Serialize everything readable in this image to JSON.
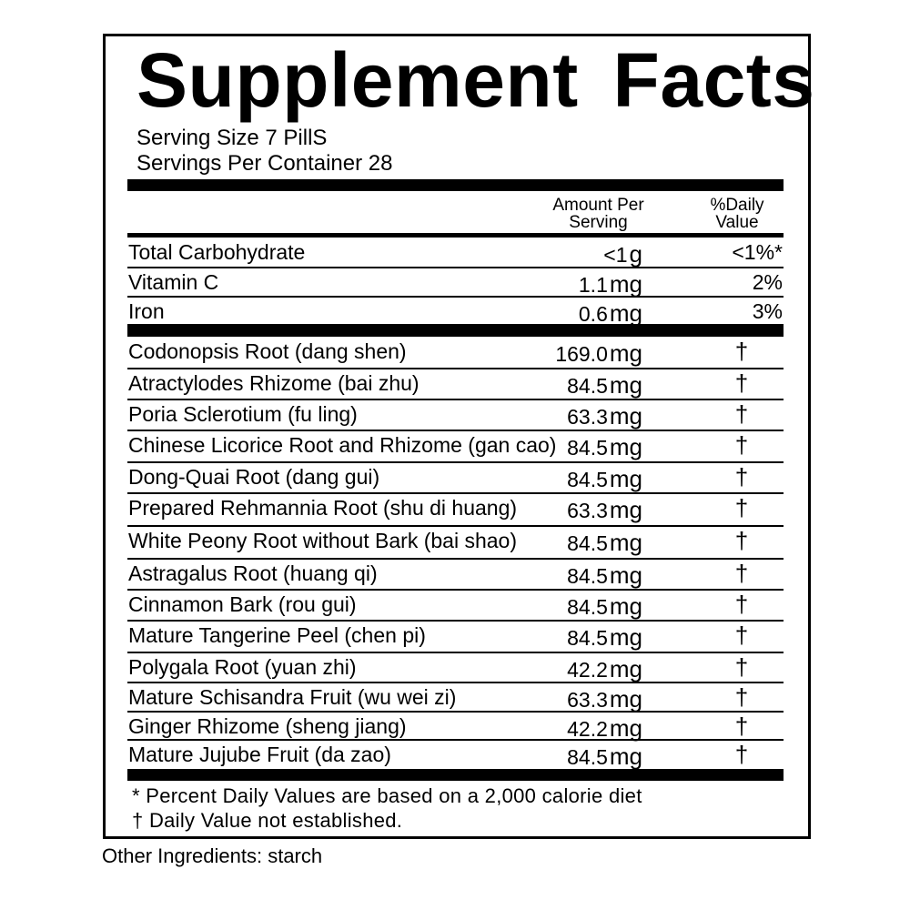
{
  "title": "Supplement Facts",
  "serving_size": "Serving Size 7 PillS",
  "servings_per_container": "Servings Per  Container 28",
  "headers": {
    "amount_line1": "Amount Per",
    "amount_line2": "Serving",
    "dv_line1": "%Daily",
    "dv_line2": "Value"
  },
  "nutrients": [
    {
      "name": "Total Carbohydrate",
      "amount": "<1",
      "unit": "g",
      "dv": "<1%*"
    },
    {
      "name": "Vitamin C",
      "amount": "1.1",
      "unit": "mg",
      "dv": "2%"
    },
    {
      "name": "Iron",
      "amount": "0.6",
      "unit": "mg",
      "dv": "3%"
    }
  ],
  "ingredients": [
    {
      "name": "Codonopsis Root (dang shen)",
      "amount": "169.0",
      "unit": "mg",
      "dv": "†"
    },
    {
      "name": "Atractylodes Rhizome (bai zhu)",
      "amount": "84.5",
      "unit": "mg",
      "dv": "†"
    },
    {
      "name": "Poria Sclerotium (fu ling)",
      "amount": "63.3",
      "unit": "mg",
      "dv": "†"
    },
    {
      "name": "Chinese Licorice Root and Rhizome (gan cao)",
      "amount": "84.5",
      "unit": "mg",
      "dv": "†"
    },
    {
      "name": "Dong-Quai Root (dang gui)",
      "amount": "84.5",
      "unit": "mg",
      "dv": "†"
    },
    {
      "name": "Prepared Rehmannia Root (shu di huang)",
      "amount": "63.3",
      "unit": "mg",
      "dv": "†"
    },
    {
      "name": "White Peony Root without Bark (bai shao)",
      "amount": "84.5",
      "unit": "mg",
      "dv": "†"
    },
    {
      "name": "Astragalus Root (huang qi)",
      "amount": "84.5",
      "unit": "mg",
      "dv": "†"
    },
    {
      "name": "Cinnamon Bark (rou gui)",
      "amount": "84.5",
      "unit": "mg",
      "dv": "†"
    },
    {
      "name": "Mature Tangerine Peel (chen pi)",
      "amount": "84.5",
      "unit": "mg",
      "dv": "†"
    },
    {
      "name": "Polygala Root (yuan zhi)",
      "amount": "42.2",
      "unit": "mg",
      "dv": "†"
    },
    {
      "name": "Mature Schisandra Fruit (wu wei zi)",
      "amount": "63.3",
      "unit": "mg",
      "dv": "†"
    },
    {
      "name": "Ginger Rhizome (sheng jiang)",
      "amount": "42.2",
      "unit": "mg",
      "dv": "†"
    },
    {
      "name": "Mature Jujube Fruit (da zao)",
      "amount": "84.5",
      "unit": "mg",
      "dv": "†"
    }
  ],
  "footnotes": {
    "percent": "* Percent Daily Values are based on a  2,000 calorie diet",
    "dagger": "† Daily Value not established."
  },
  "other_ingredients": "Other Ingredients:  starch"
}
